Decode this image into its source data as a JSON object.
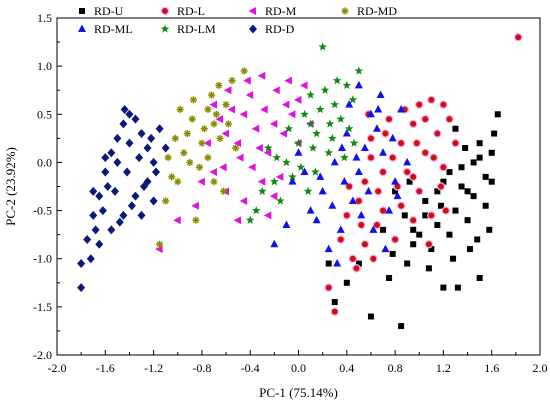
{
  "chart_data": {
    "type": "scatter",
    "xlabel": "PC-1 (75.14%)",
    "ylabel": "PC-2 (23.92%)",
    "xlim": [
      -2.0,
      2.0
    ],
    "ylim": [
      -2.0,
      1.5
    ],
    "xticks": [
      "-2.0",
      "-1.6",
      "-1.2",
      "-0.8",
      "-0.4",
      "0.0",
      "0.4",
      "0.8",
      "1.2",
      "1.6",
      "2.0"
    ],
    "yticks": [
      "-2.0",
      "-1.5",
      "-1.0",
      "-0.5",
      "0.0",
      "0.5",
      "1.0",
      "1.5"
    ],
    "legend_position": "top-left",
    "series": [
      {
        "name": "RD-U",
        "marker": "square",
        "color": "#000000",
        "points": [
          [
            1.15,
            -0.3
          ],
          [
            1.3,
            -0.5
          ],
          [
            1.45,
            0.0
          ],
          [
            1.6,
            -0.2
          ],
          [
            0.95,
            -0.7
          ],
          [
            1.05,
            -0.4
          ],
          [
            1.25,
            -0.1
          ],
          [
            1.4,
            -0.6
          ],
          [
            1.5,
            0.2
          ],
          [
            1.65,
            0.5
          ],
          [
            0.85,
            -1.7
          ],
          [
            0.6,
            -1.6
          ],
          [
            0.75,
            -1.2
          ],
          [
            0.9,
            -1.05
          ],
          [
            1.0,
            -0.75
          ],
          [
            1.1,
            -0.9
          ],
          [
            1.2,
            -0.2
          ],
          [
            1.35,
            -0.05
          ],
          [
            1.45,
            -0.35
          ],
          [
            1.55,
            -0.15
          ],
          [
            1.6,
            0.1
          ],
          [
            1.62,
            0.3
          ],
          [
            1.38,
            0.15
          ],
          [
            1.2,
            -1.3
          ],
          [
            1.32,
            -1.3
          ],
          [
            1.5,
            -1.2
          ],
          [
            0.3,
            -1.45
          ],
          [
            0.4,
            -1.25
          ],
          [
            0.5,
            -1.05
          ],
          [
            0.25,
            -1.05
          ],
          [
            0.95,
            -0.85
          ],
          [
            1.05,
            -0.55
          ],
          [
            0.8,
            -0.3
          ],
          [
            1.15,
            -0.65
          ],
          [
            1.25,
            -0.75
          ],
          [
            1.35,
            -0.25
          ],
          [
            1.48,
            -0.8
          ],
          [
            1.58,
            -0.7
          ],
          [
            0.7,
            -0.7
          ],
          [
            0.88,
            -0.55
          ],
          [
            1.08,
            -1.1
          ],
          [
            1.28,
            -1.0
          ],
          [
            1.42,
            -0.9
          ],
          [
            1.3,
            0.35
          ],
          [
            1.5,
            0.05
          ],
          [
            0.92,
            -0.2
          ],
          [
            1.18,
            -0.45
          ],
          [
            1.55,
            -0.45
          ],
          [
            1.4,
            -0.3
          ],
          [
            0.78,
            -0.95
          ]
        ]
      },
      {
        "name": "RD-L",
        "marker": "circle",
        "color": "#d01010",
        "points": [
          [
            1.82,
            1.3
          ],
          [
            0.85,
            0.2
          ],
          [
            0.95,
            0.4
          ],
          [
            1.05,
            0.1
          ],
          [
            1.1,
            0.65
          ],
          [
            1.2,
            0.6
          ],
          [
            0.9,
            -0.1
          ],
          [
            1.0,
            -0.3
          ],
          [
            0.7,
            -0.5
          ],
          [
            0.8,
            -0.8
          ],
          [
            0.6,
            0.25
          ],
          [
            0.75,
            0.45
          ],
          [
            0.55,
            -0.2
          ],
          [
            0.65,
            -0.65
          ],
          [
            0.4,
            -0.55
          ],
          [
            0.3,
            -1.55
          ],
          [
            0.25,
            -1.3
          ],
          [
            0.45,
            -1.0
          ],
          [
            0.55,
            -0.85
          ],
          [
            1.15,
            0.3
          ],
          [
            1.25,
            0.45
          ],
          [
            1.3,
            0.2
          ],
          [
            1.2,
            -0.05
          ],
          [
            1.1,
            -0.55
          ],
          [
            0.85,
            -0.45
          ],
          [
            0.95,
            -0.15
          ],
          [
            1.05,
            0.45
          ],
          [
            0.6,
            0.05
          ],
          [
            0.5,
            -0.4
          ],
          [
            0.35,
            -0.8
          ],
          [
            0.42,
            -0.25
          ],
          [
            0.7,
            -0.1
          ],
          [
            0.88,
            0.55
          ],
          [
            1.0,
            0.6
          ],
          [
            1.18,
            -0.25
          ],
          [
            0.78,
            0.05
          ],
          [
            0.66,
            -0.3
          ],
          [
            0.95,
            -0.6
          ],
          [
            1.08,
            -0.85
          ],
          [
            0.52,
            -0.65
          ],
          [
            0.72,
            0.3
          ],
          [
            0.82,
            -0.25
          ],
          [
            1.12,
            0.05
          ],
          [
            0.58,
            0.5
          ],
          [
            0.98,
            0.2
          ],
          [
            1.22,
            -0.5
          ],
          [
            0.48,
            -1.1
          ],
          [
            0.62,
            -1.0
          ]
        ]
      },
      {
        "name": "RD-M",
        "marker": "tri-left",
        "color": "#e010e0",
        "points": [
          [
            -0.4,
            0.7
          ],
          [
            -0.3,
            0.9
          ],
          [
            -0.2,
            0.4
          ],
          [
            -0.1,
            0.6
          ],
          [
            0.0,
            0.2
          ],
          [
            -0.5,
            0.2
          ],
          [
            -0.6,
            0.3
          ],
          [
            -0.7,
            -0.1
          ],
          [
            -0.45,
            -0.4
          ],
          [
            -0.3,
            -0.2
          ],
          [
            -0.55,
            0.55
          ],
          [
            -0.35,
            0.35
          ],
          [
            -0.25,
            0.1
          ],
          [
            -0.15,
            -0.15
          ],
          [
            -0.05,
            0.5
          ],
          [
            0.05,
            0.8
          ],
          [
            0.1,
            0.4
          ],
          [
            -0.65,
            0.45
          ],
          [
            -0.75,
            0.2
          ],
          [
            -1.0,
            -0.6
          ],
          [
            -0.85,
            -0.45
          ],
          [
            -0.6,
            -0.3
          ],
          [
            -0.48,
            0.05
          ],
          [
            -0.38,
            -0.05
          ],
          [
            -0.28,
            0.55
          ],
          [
            -0.18,
            0.75
          ],
          [
            -0.08,
            0.85
          ],
          [
            -0.2,
            -0.35
          ],
          [
            -0.5,
            -0.6
          ],
          [
            -0.7,
            0.6
          ],
          [
            -0.42,
            0.85
          ],
          [
            -0.58,
            0.75
          ],
          [
            -0.12,
            0.3
          ],
          [
            0.0,
            0.65
          ],
          [
            -0.32,
            0.15
          ],
          [
            -0.62,
            -0.05
          ],
          [
            -0.8,
            -0.2
          ],
          [
            -1.15,
            -0.9
          ],
          [
            -0.25,
            -0.55
          ],
          [
            -0.45,
            0.5
          ]
        ]
      },
      {
        "name": "RD-MD",
        "marker": "asterisk",
        "color": "#8b8b00",
        "points": [
          [
            -0.45,
            0.95
          ],
          [
            -0.6,
            0.6
          ],
          [
            -0.7,
            0.4
          ],
          [
            -0.8,
            0.2
          ],
          [
            -0.9,
            0.0
          ],
          [
            -1.0,
            -0.2
          ],
          [
            -1.1,
            -0.4
          ],
          [
            -1.15,
            -0.85
          ],
          [
            -0.85,
            -0.6
          ],
          [
            -0.75,
            0.55
          ],
          [
            -0.65,
            0.25
          ],
          [
            -0.72,
            0.7
          ],
          [
            -0.88,
            0.45
          ],
          [
            -0.95,
            0.1
          ],
          [
            -1.05,
            -0.15
          ],
          [
            -0.55,
            0.85
          ],
          [
            -0.68,
            0.5
          ],
          [
            -0.78,
            0.35
          ],
          [
            -0.92,
            0.3
          ],
          [
            -0.82,
            -0.05
          ],
          [
            -0.62,
            -0.3
          ],
          [
            -0.58,
            0.4
          ],
          [
            -0.75,
            0.05
          ],
          [
            -0.98,
            0.55
          ],
          [
            -1.02,
            0.25
          ],
          [
            -0.87,
            0.65
          ],
          [
            -0.7,
            -0.2
          ],
          [
            -0.52,
            0.15
          ],
          [
            -0.66,
            0.8
          ],
          [
            -1.08,
            0.05
          ]
        ]
      },
      {
        "name": "RD-ML",
        "marker": "triangle",
        "color": "#1010ee",
        "points": [
          [
            0.6,
            0.5
          ],
          [
            0.7,
            0.1
          ],
          [
            0.8,
            -0.2
          ],
          [
            0.5,
            -0.1
          ],
          [
            0.4,
            0.3
          ],
          [
            0.3,
            0.0
          ],
          [
            0.2,
            -0.3
          ],
          [
            0.1,
            -0.5
          ],
          [
            -0.05,
            -0.2
          ],
          [
            -0.2,
            -0.85
          ],
          [
            0.5,
            0.8
          ],
          [
            0.65,
            0.35
          ],
          [
            0.45,
            -0.4
          ],
          [
            0.35,
            -0.7
          ],
          [
            0.25,
            -0.9
          ],
          [
            0.15,
            -0.6
          ],
          [
            0.05,
            -0.1
          ],
          [
            0.0,
            0.1
          ],
          [
            0.55,
            0.15
          ],
          [
            0.75,
            -0.5
          ],
          [
            0.85,
            0.55
          ],
          [
            0.62,
            -0.7
          ],
          [
            0.48,
            0.05
          ],
          [
            0.38,
            -0.2
          ],
          [
            0.28,
            -0.45
          ],
          [
            0.72,
            -0.9
          ],
          [
            0.58,
            -0.3
          ],
          [
            0.42,
            0.6
          ],
          [
            0.9,
            0.0
          ],
          [
            0.68,
            0.7
          ],
          [
            0.78,
            0.25
          ],
          [
            0.18,
            -0.15
          ],
          [
            -0.1,
            -0.65
          ],
          [
            0.32,
            -1.05
          ],
          [
            0.52,
            -0.55
          ],
          [
            0.66,
            0.55
          ],
          [
            0.36,
            0.15
          ],
          [
            0.82,
            -0.35
          ]
        ]
      },
      {
        "name": "RD-LM",
        "marker": "star",
        "color": "#118811",
        "points": [
          [
            0.2,
            1.2
          ],
          [
            0.4,
            0.8
          ],
          [
            0.3,
            0.6
          ],
          [
            0.1,
            0.4
          ],
          [
            0.0,
            0.2
          ],
          [
            -0.1,
            0.0
          ],
          [
            -0.2,
            -0.2
          ],
          [
            -0.3,
            -0.3
          ],
          [
            -0.35,
            -0.5
          ],
          [
            -0.15,
            -0.4
          ],
          [
            0.05,
            0.5
          ],
          [
            0.15,
            0.3
          ],
          [
            0.25,
            0.1
          ],
          [
            0.35,
            0.45
          ],
          [
            0.45,
            0.65
          ],
          [
            0.5,
            0.95
          ],
          [
            0.1,
            0.7
          ],
          [
            0.22,
            0.75
          ],
          [
            -0.05,
            -0.15
          ],
          [
            -0.25,
            0.15
          ],
          [
            0.08,
            -0.3
          ],
          [
            0.18,
            0.55
          ],
          [
            0.28,
            0.25
          ],
          [
            0.38,
            0.05
          ],
          [
            0.32,
            0.85
          ],
          [
            -0.4,
            -0.6
          ],
          [
            0.12,
            0.15
          ],
          [
            -0.08,
            0.35
          ],
          [
            0.42,
            0.35
          ],
          [
            0.02,
            -0.05
          ],
          [
            0.26,
            0.4
          ],
          [
            -0.18,
            0.05
          ],
          [
            0.14,
            -0.1
          ],
          [
            0.46,
            0.2
          ]
        ]
      },
      {
        "name": "RD-D",
        "marker": "diamond",
        "color": "#0b1a7a",
        "points": [
          [
            -1.8,
            -1.3
          ],
          [
            -1.8,
            -1.05
          ],
          [
            -1.75,
            -0.8
          ],
          [
            -1.7,
            -0.55
          ],
          [
            -1.65,
            -0.35
          ],
          [
            -1.6,
            -0.1
          ],
          [
            -1.55,
            0.1
          ],
          [
            -1.5,
            0.25
          ],
          [
            -1.45,
            0.4
          ],
          [
            -1.4,
            0.5
          ],
          [
            -1.35,
            0.45
          ],
          [
            -1.3,
            0.3
          ],
          [
            -1.25,
            0.15
          ],
          [
            -1.2,
            0.0
          ],
          [
            -1.25,
            -0.2
          ],
          [
            -1.35,
            -0.35
          ],
          [
            -1.45,
            -0.55
          ],
          [
            -1.55,
            -0.7
          ],
          [
            -1.65,
            -0.85
          ],
          [
            -1.72,
            -1.0
          ],
          [
            -1.62,
            -0.5
          ],
          [
            -1.52,
            -0.3
          ],
          [
            -1.42,
            -0.1
          ],
          [
            -1.32,
            0.05
          ],
          [
            -1.22,
            0.25
          ],
          [
            -1.15,
            0.35
          ],
          [
            -1.1,
            0.15
          ],
          [
            -1.18,
            -0.1
          ],
          [
            -1.28,
            -0.25
          ],
          [
            -1.38,
            -0.45
          ],
          [
            -1.48,
            -0.62
          ],
          [
            -1.58,
            -0.25
          ],
          [
            -1.68,
            -0.7
          ],
          [
            -1.5,
            0.0
          ],
          [
            -1.4,
            0.2
          ],
          [
            -1.3,
            -0.55
          ],
          [
            -1.2,
            -0.4
          ],
          [
            -1.6,
            0.05
          ],
          [
            -1.7,
            -0.3
          ],
          [
            -1.44,
            0.55
          ]
        ]
      }
    ]
  }
}
